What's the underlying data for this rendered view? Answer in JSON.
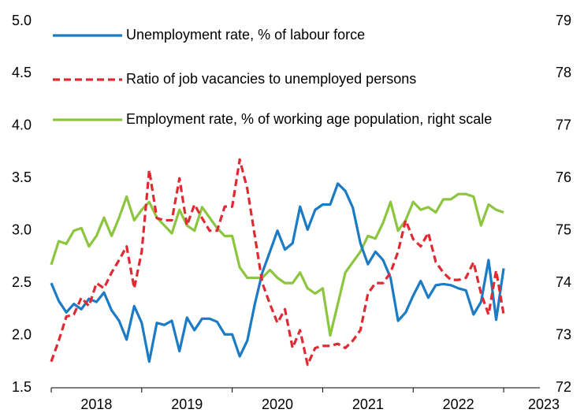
{
  "chart_data": {
    "type": "line",
    "x": [
      2018.0,
      2018.083,
      2018.167,
      2018.25,
      2018.333,
      2018.417,
      2018.5,
      2018.583,
      2018.667,
      2018.75,
      2018.833,
      2018.917,
      2019.0,
      2019.083,
      2019.167,
      2019.25,
      2019.333,
      2019.417,
      2019.5,
      2019.583,
      2019.667,
      2019.75,
      2019.833,
      2019.917,
      2020.0,
      2020.083,
      2020.167,
      2020.25,
      2020.333,
      2020.417,
      2020.5,
      2020.583,
      2020.667,
      2020.75,
      2020.833,
      2020.917,
      2021.0,
      2021.083,
      2021.167,
      2021.25,
      2021.333,
      2021.417,
      2021.5,
      2021.583,
      2021.667,
      2021.75,
      2021.833,
      2021.917,
      2022.0,
      2022.083,
      2022.167,
      2022.25,
      2022.333,
      2022.417,
      2022.5,
      2022.583,
      2022.667,
      2022.75,
      2022.833,
      2022.917,
      2023.0
    ],
    "series": [
      {
        "name": "Unemployment rate, % of labour force",
        "color": "#1b7bc4",
        "dash": false,
        "values": [
          2.5,
          2.33,
          2.22,
          2.3,
          2.25,
          2.35,
          2.32,
          2.41,
          2.24,
          2.14,
          1.96,
          2.28,
          2.12,
          1.75,
          2.12,
          2.1,
          2.14,
          1.85,
          2.17,
          2.05,
          2.16,
          2.16,
          2.13,
          2.01,
          2.01,
          1.8,
          1.95,
          2.3,
          2.6,
          2.8,
          3.0,
          2.82,
          2.88,
          3.23,
          3.01,
          3.2,
          3.25,
          3.25,
          3.45,
          3.38,
          3.22,
          2.88,
          2.68,
          2.8,
          2.72,
          2.55,
          2.14,
          2.22,
          2.38,
          2.52,
          2.36,
          2.48,
          2.49,
          2.48,
          2.45,
          2.43,
          2.2,
          2.32,
          2.72,
          2.15,
          2.64
        ]
      },
      {
        "name": "Ratio of job vacancies to unemployed persons",
        "color": "#e02a33",
        "dash": true,
        "values": [
          1.75,
          1.95,
          2.18,
          2.2,
          2.36,
          2.28,
          2.5,
          2.45,
          2.6,
          2.72,
          2.85,
          2.45,
          2.8,
          3.58,
          3.12,
          3.1,
          3.1,
          3.5,
          3.05,
          3.25,
          3.12,
          3.0,
          3.0,
          3.23,
          3.23,
          3.68,
          3.4,
          2.95,
          2.5,
          2.3,
          2.12,
          2.25,
          1.88,
          2.05,
          1.72,
          1.88,
          1.9,
          1.9,
          1.92,
          1.88,
          1.95,
          2.05,
          2.4,
          2.5,
          2.5,
          2.6,
          2.8,
          3.1,
          2.92,
          2.85,
          2.98,
          2.7,
          2.6,
          2.53,
          2.53,
          2.55,
          2.7,
          2.4,
          2.2,
          2.62,
          2.2
        ]
      },
      {
        "name": "Employment rate, % of working age population, right scale",
        "color": "#8cc63f",
        "dash": false,
        "axis": "y2",
        "values": [
          74.35,
          74.8,
          74.75,
          75.0,
          75.05,
          74.7,
          74.9,
          75.25,
          74.9,
          75.25,
          75.65,
          75.2,
          75.4,
          75.55,
          75.25,
          75.1,
          74.95,
          75.4,
          75.1,
          75.0,
          75.45,
          75.25,
          75.05,
          74.9,
          74.9,
          74.3,
          74.1,
          74.1,
          74.1,
          74.25,
          74.1,
          74.0,
          74.0,
          74.2,
          73.9,
          73.8,
          73.9,
          73.0,
          73.6,
          74.2,
          74.4,
          74.6,
          74.9,
          74.85,
          75.15,
          75.55,
          75.0,
          75.2,
          75.55,
          75.4,
          75.45,
          75.35,
          75.6,
          75.6,
          75.7,
          75.7,
          75.65,
          75.1,
          75.5,
          75.4,
          75.35
        ]
      }
    ],
    "xlim": [
      2018,
      2023.4
    ],
    "xticks": [
      2018,
      2019,
      2020,
      2021,
      2022,
      2023
    ],
    "ylim": [
      1.5,
      5.0
    ],
    "yticks": [
      1.5,
      {
        "value": 2,
        "label": "2.0"
      },
      2.5,
      {
        "value": 3,
        "label": "3.0"
      },
      3.5,
      {
        "value": 4,
        "label": "4.0"
      },
      4.5,
      {
        "value": 5,
        "label": "5.0"
      }
    ],
    "y2lim": [
      72,
      79
    ],
    "y2ticks": [
      72,
      73,
      74,
      75,
      76,
      77,
      78,
      79
    ],
    "legend": "upper left",
    "grid": false
  }
}
